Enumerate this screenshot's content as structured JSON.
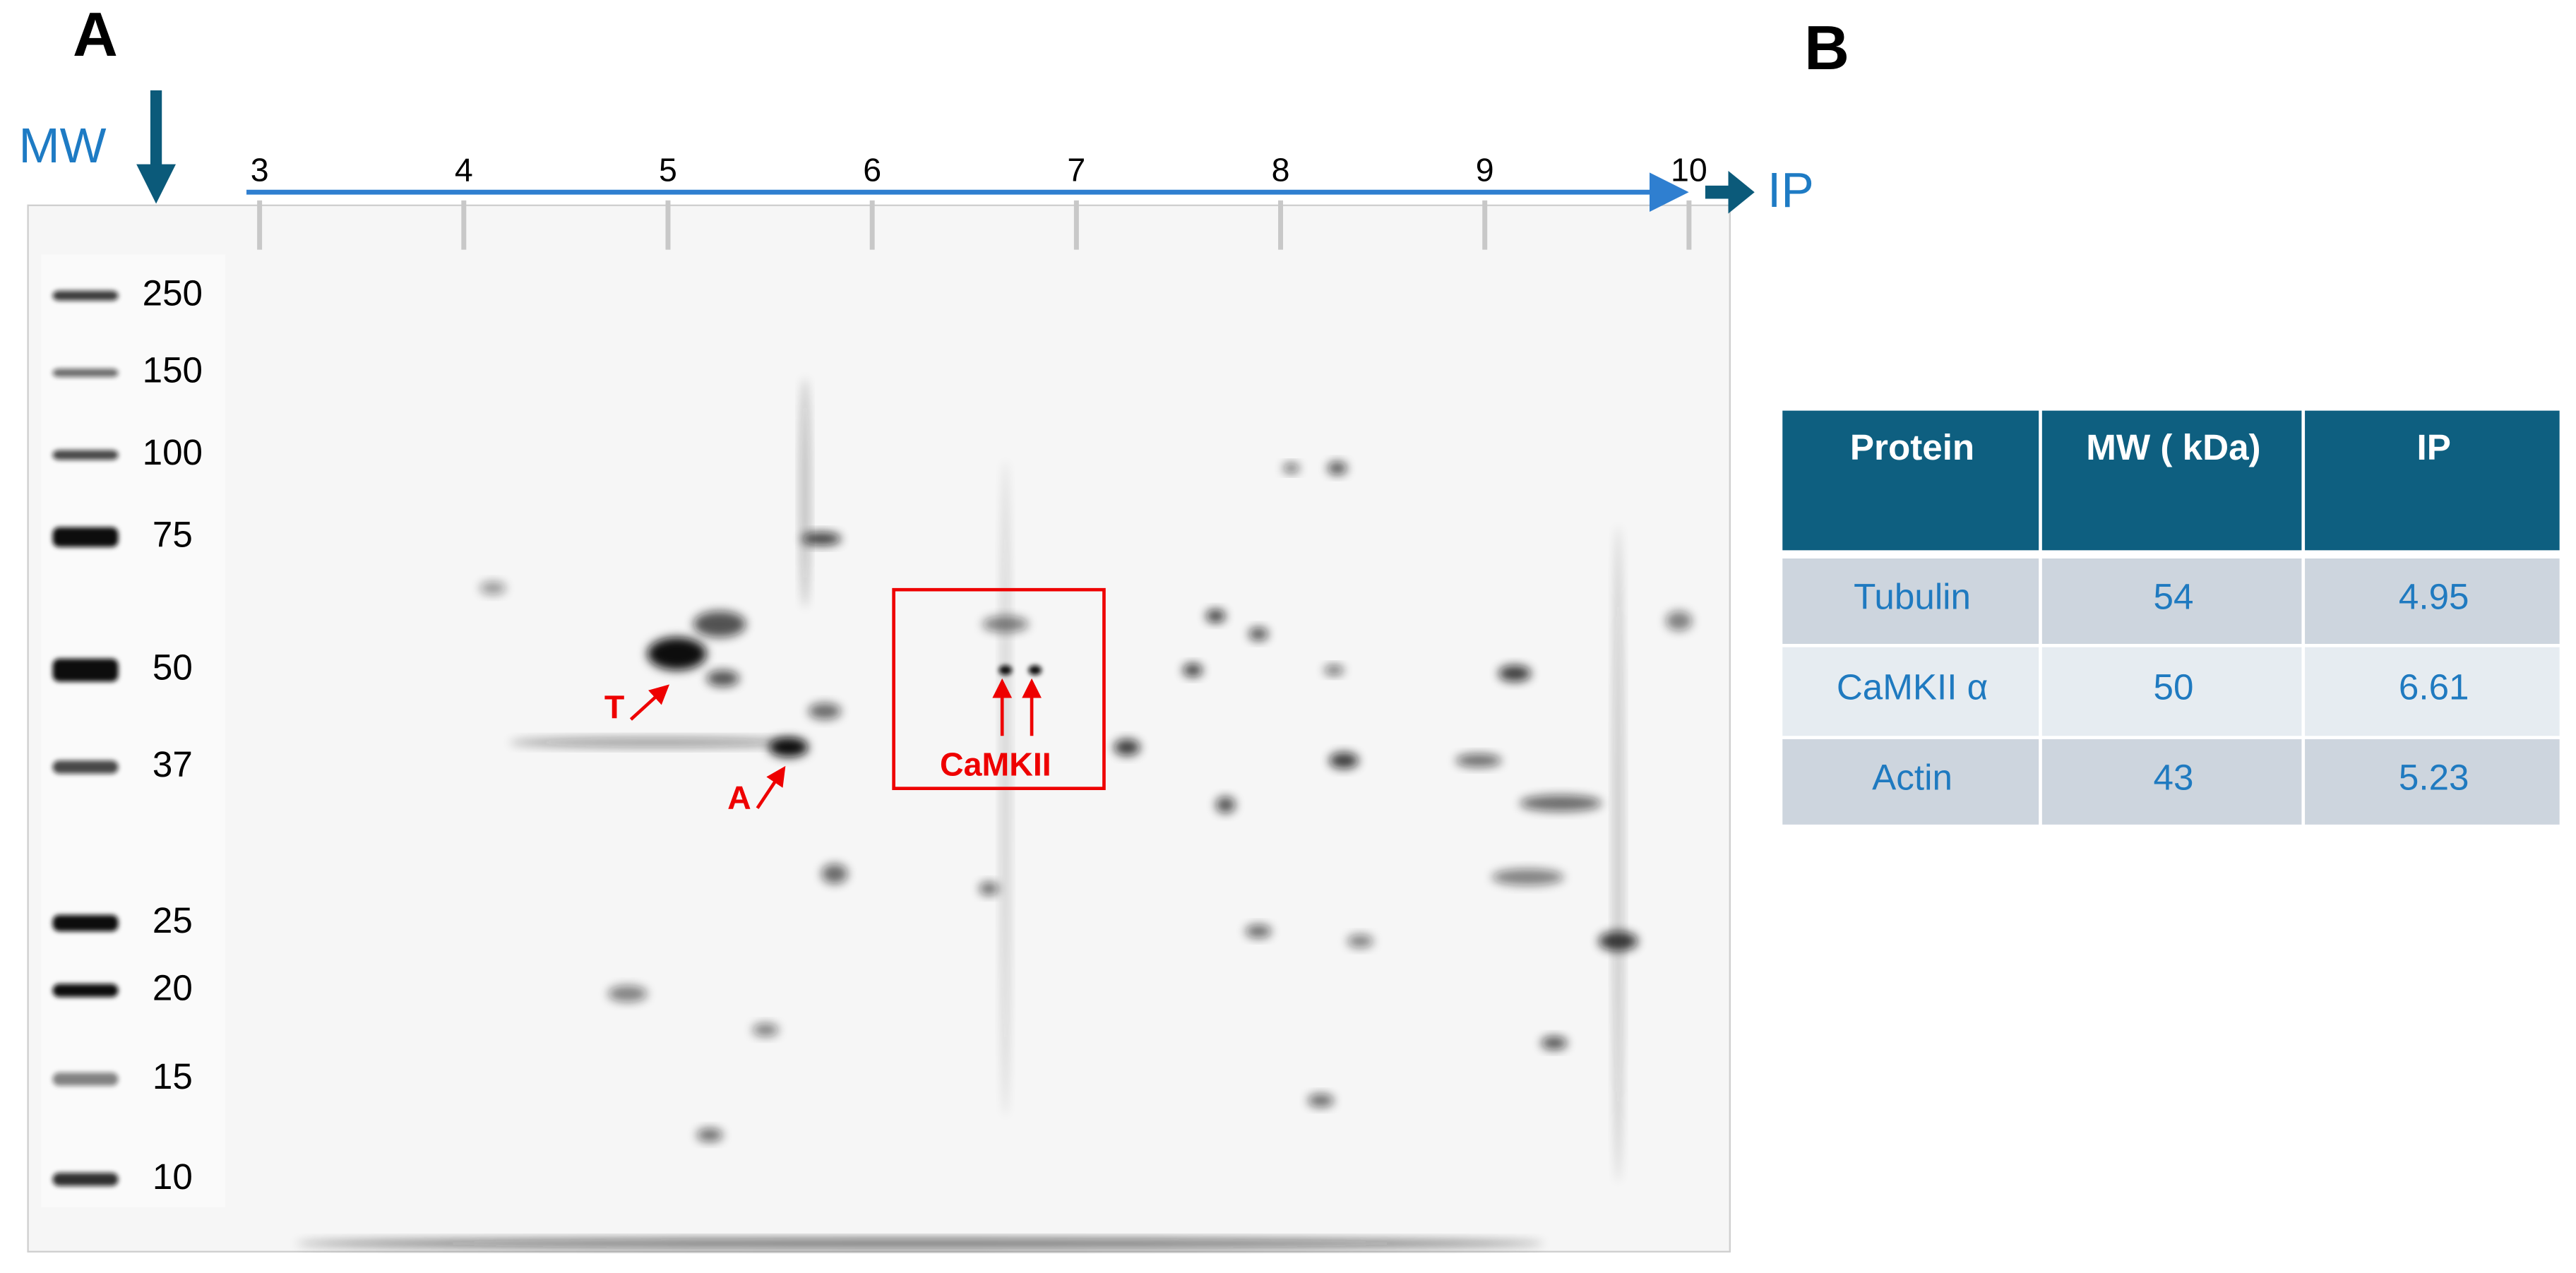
{
  "panels": {
    "a_label": "A",
    "b_label": "B"
  },
  "gel": {
    "mw_label": "MW",
    "ip_label": "IP",
    "ip_ticks": [
      3,
      4,
      5,
      6,
      7,
      8,
      9,
      10
    ],
    "mw_markers": [
      "250",
      "150",
      "100",
      "75",
      "50",
      "37",
      "25",
      "20",
      "15",
      "10"
    ],
    "annotations": {
      "tubulin": "T",
      "actin": "A",
      "camkii": "CaMKII"
    }
  },
  "table": {
    "header": [
      "Protein",
      "MW ( kDa)",
      "IP"
    ],
    "rows": [
      [
        "Tubulin",
        "54",
        "4.95"
      ],
      [
        "CaMKII α",
        "50",
        "6.61"
      ],
      [
        "Actin",
        "43",
        "5.23"
      ]
    ]
  }
}
